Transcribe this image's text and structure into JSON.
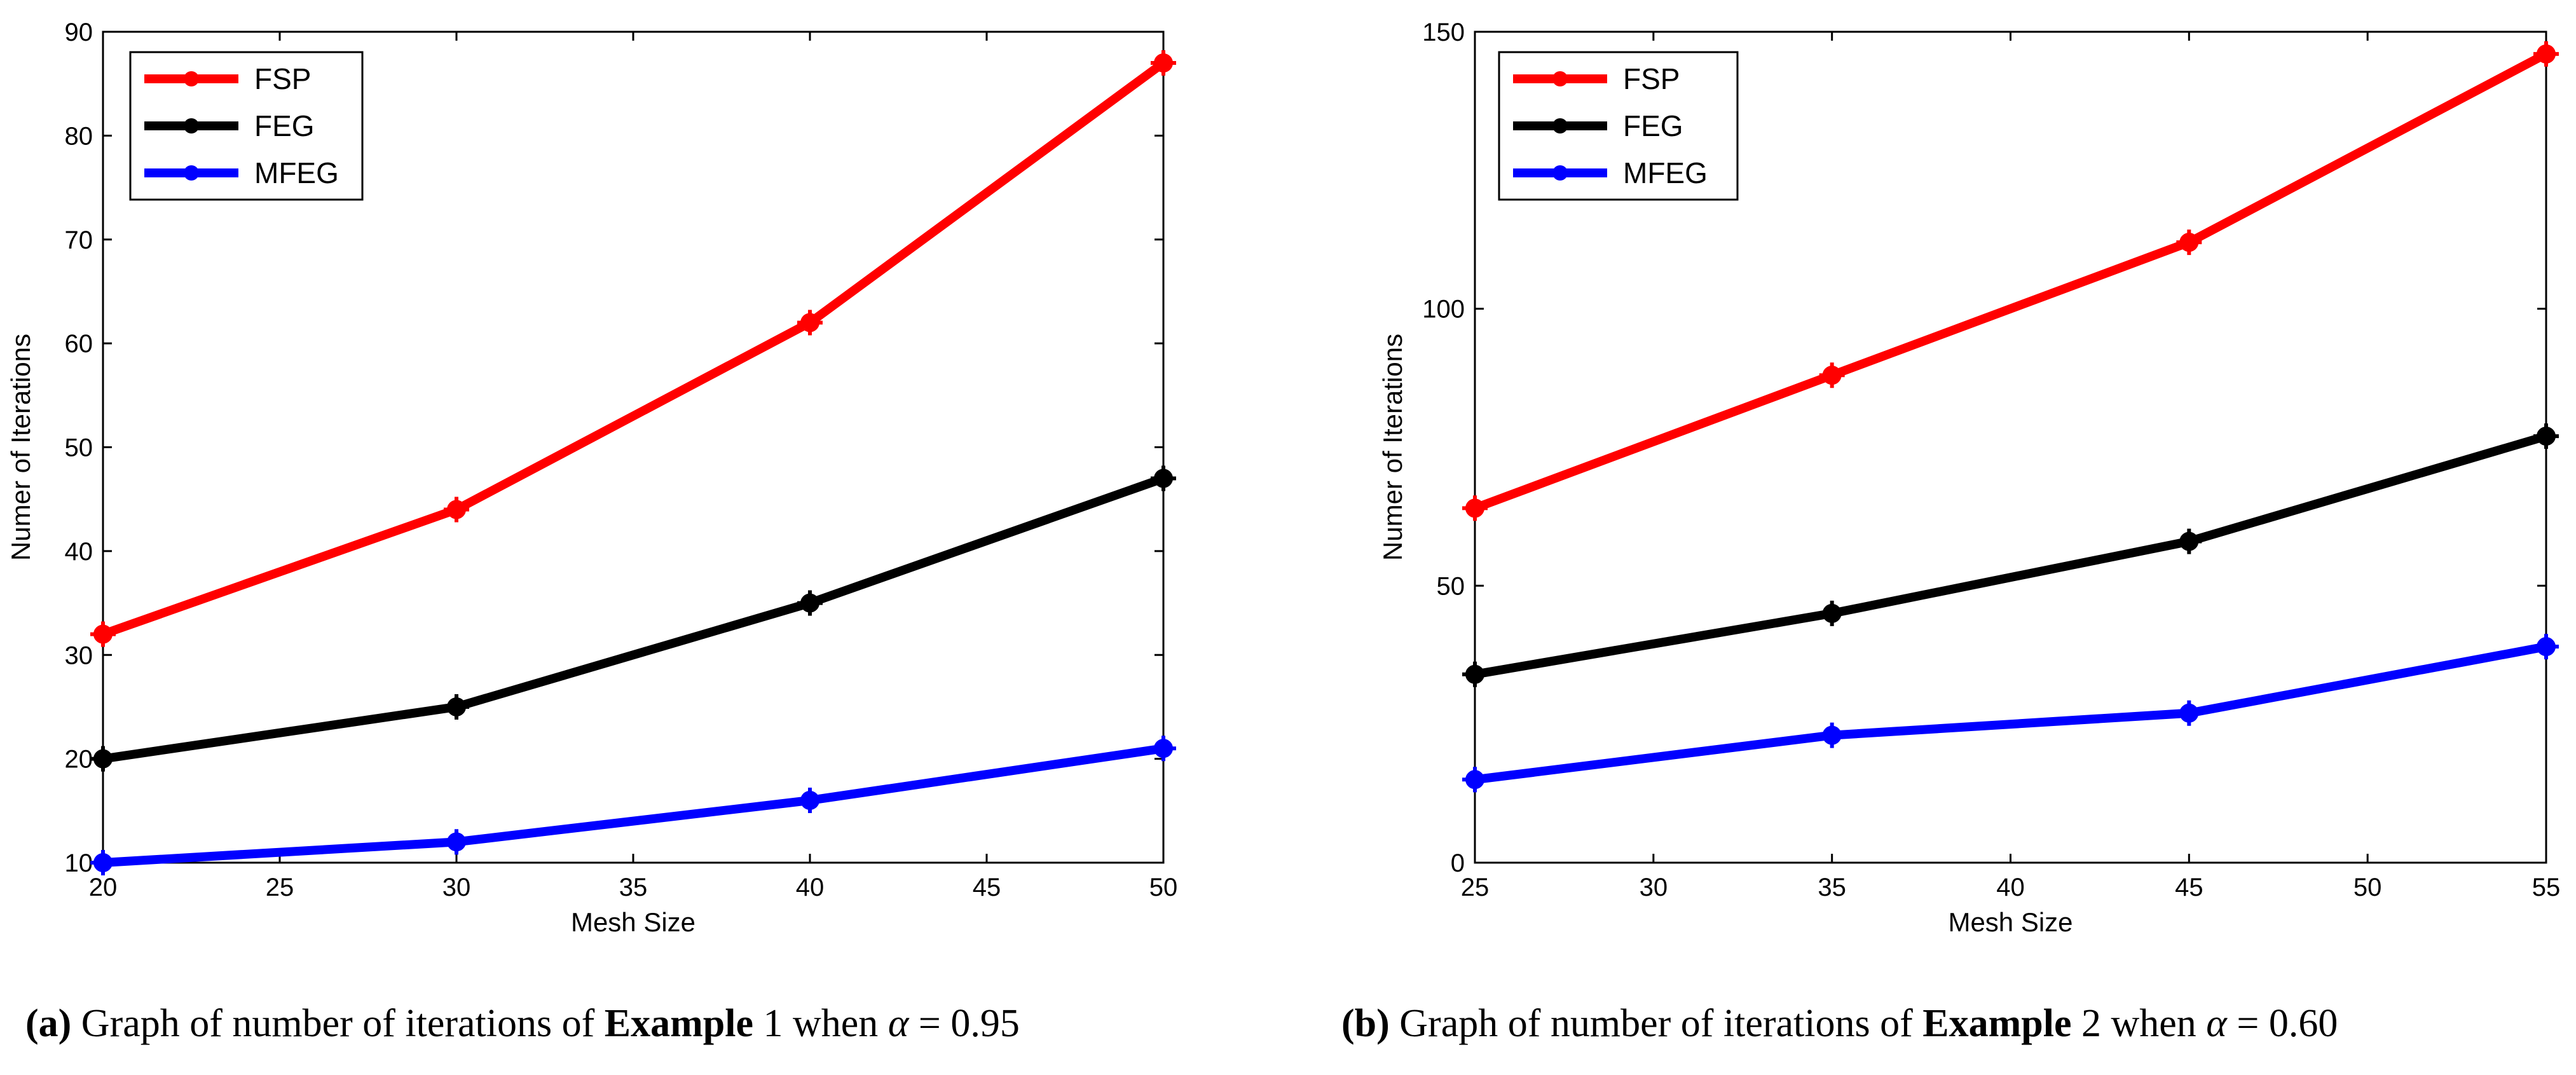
{
  "chart_data": [
    {
      "type": "line",
      "panel": "a",
      "xlabel": "Mesh Size",
      "ylabel": "Numer of Iterations",
      "xlim": [
        20,
        50
      ],
      "ylim": [
        10,
        90
      ],
      "xticks": [
        20,
        25,
        30,
        35,
        40,
        45,
        50
      ],
      "yticks": [
        10,
        20,
        30,
        40,
        50,
        60,
        70,
        80,
        90
      ],
      "x": [
        20,
        30,
        40,
        50
      ],
      "series": [
        {
          "name": "FSP",
          "color": "#ff0000",
          "values": [
            32,
            44,
            62,
            87
          ]
        },
        {
          "name": "FEG",
          "color": "#000000",
          "values": [
            20,
            25,
            35,
            47
          ]
        },
        {
          "name": "MFEG",
          "color": "#0000ff",
          "values": [
            10,
            12,
            16,
            21
          ]
        }
      ],
      "legend_position": "top-left",
      "caption": {
        "label": "(a)",
        "prefix": "Graph of number of iterations of",
        "bold": "Example",
        "suffix": "1 when",
        "symbol": "α",
        "equals": "=",
        "value": "0.95"
      }
    },
    {
      "type": "line",
      "panel": "b",
      "xlabel": "Mesh Size",
      "ylabel": "Numer of Iterations",
      "xlim": [
        25,
        55
      ],
      "ylim": [
        0,
        150
      ],
      "xticks": [
        25,
        30,
        35,
        40,
        45,
        50,
        55
      ],
      "yticks": [
        0,
        50,
        100,
        150
      ],
      "x": [
        25,
        35,
        45,
        55
      ],
      "series": [
        {
          "name": "FSP",
          "color": "#ff0000",
          "values": [
            64,
            88,
            112,
            146
          ]
        },
        {
          "name": "FEG",
          "color": "#000000",
          "values": [
            34,
            45,
            58,
            77
          ]
        },
        {
          "name": "MFEG",
          "color": "#0000ff",
          "values": [
            15,
            23,
            27,
            39
          ]
        }
      ],
      "legend_position": "top-left",
      "caption": {
        "label": "(b)",
        "prefix": "Graph of number of iterations of",
        "bold": "Example",
        "suffix": "2 when",
        "symbol": "α",
        "equals": "=",
        "value": "0.60"
      }
    }
  ]
}
